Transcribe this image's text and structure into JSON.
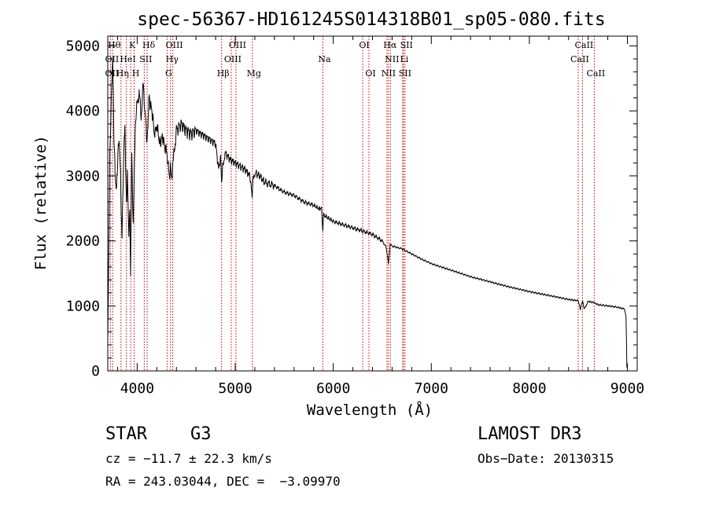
{
  "chart_data": {
    "type": "line",
    "title": "spec-56367-HD161245S014318B01_sp05-080.fits",
    "xlabel": "Wavelength (Å)",
    "ylabel": "Flux (relative)",
    "xlim": [
      3700,
      9100
    ],
    "ylim": [
      0,
      5150
    ],
    "xticks": [
      4000,
      5000,
      6000,
      7000,
      8000,
      9000
    ],
    "yticks": [
      0,
      1000,
      2000,
      3000,
      4000,
      5000
    ],
    "grid": false,
    "series": [
      {
        "name": "spectrum",
        "x": [
          3700,
          3710,
          3720,
          3735,
          3750,
          3760,
          3775,
          3790,
          3800,
          3815,
          3830,
          3845,
          3860,
          3875,
          3890,
          3900,
          3915,
          3925,
          3933,
          3945,
          3960,
          3968,
          3980,
          4000,
          4020,
          4040,
          4060,
          4080,
          4102,
          4120,
          4150,
          4180,
          4200,
          4230,
          4260,
          4290,
          4310,
          4325,
          4340,
          4355,
          4380,
          4400,
          4450,
          4500,
          4550,
          4600,
          4650,
          4700,
          4750,
          4800,
          4830,
          4850,
          4861,
          4875,
          4900,
          4950,
          5000,
          5050,
          5100,
          5150,
          5172,
          5183,
          5200,
          5250,
          5300,
          5400,
          5500,
          5600,
          5700,
          5800,
          5850,
          5880,
          5893,
          5900,
          5950,
          6000,
          6100,
          6200,
          6300,
          6400,
          6500,
          6540,
          6563,
          6580,
          6600,
          6700,
          6800,
          6900,
          7000,
          7200,
          7400,
          7600,
          7800,
          8000,
          8200,
          8400,
          8498,
          8520,
          8542,
          8560,
          8600,
          8662,
          8700,
          8800,
          8900,
          8950,
          8970,
          8985,
          8990,
          8995
        ],
        "values": [
          500,
          1700,
          3300,
          4100,
          4900,
          3800,
          3000,
          2800,
          3200,
          3600,
          3000,
          2000,
          3200,
          3800,
          2500,
          3000,
          2100,
          2500,
          1500,
          3300,
          2200,
          2800,
          3800,
          4100,
          4300,
          3900,
          4400,
          4000,
          3500,
          4200,
          4000,
          3600,
          3800,
          3500,
          3600,
          3400,
          3300,
          3000,
          3100,
          3000,
          3400,
          3700,
          3800,
          3700,
          3650,
          3700,
          3650,
          3600,
          3550,
          3500,
          3100,
          3300,
          2900,
          3200,
          3350,
          3250,
          3200,
          3150,
          3100,
          3000,
          2700,
          2950,
          3050,
          3000,
          2900,
          2850,
          2750,
          2700,
          2600,
          2550,
          2500,
          2500,
          2150,
          2400,
          2350,
          2300,
          2250,
          2200,
          2150,
          2100,
          2000,
          1900,
          1650,
          1950,
          1920,
          1880,
          1800,
          1720,
          1650,
          1550,
          1450,
          1370,
          1290,
          1220,
          1160,
          1100,
          1080,
          950,
          1080,
          950,
          1070,
          1050,
          1020,
          1000,
          980,
          960,
          950,
          850,
          500,
          50
        ]
      }
    ],
    "lines": [
      {
        "name": "OII",
        "x": 3727
      },
      {
        "name": "Hθ",
        "x": 3750
      },
      {
        "name": "Hη",
        "x": 3835
      },
      {
        "name": "HeI",
        "x": 3889
      },
      {
        "name": "K",
        "x": 3934
      },
      {
        "name": "SII",
        "x": 4072
      },
      {
        "name": "H",
        "x": 3969
      },
      {
        "name": "Hδ",
        "x": 4102
      },
      {
        "name": "Hγ",
        "x": 4340
      },
      {
        "name": "G",
        "x": 4305
      },
      {
        "name": "OIII",
        "x": 4363
      },
      {
        "name": "Hβ",
        "x": 4861
      },
      {
        "name": "OIII",
        "x": 4959
      },
      {
        "name": "OIII",
        "x": 5007
      },
      {
        "name": "Mg",
        "x": 5175
      },
      {
        "name": "Na",
        "x": 5894
      },
      {
        "name": "OI",
        "x": 6300
      },
      {
        "name": "OI",
        "x": 6364
      },
      {
        "name": "NII",
        "x": 6548
      },
      {
        "name": "Hα",
        "x": 6563
      },
      {
        "name": "NII",
        "x": 6583
      },
      {
        "name": "Li",
        "x": 6708
      },
      {
        "name": "SII",
        "x": 6716
      },
      {
        "name": "SII",
        "x": 6731
      },
      {
        "name": "CaII",
        "x": 8498
      },
      {
        "name": "CaII",
        "x": 8542
      },
      {
        "name": "CaII",
        "x": 8662
      }
    ],
    "line_labels": [
      {
        "text": "Hθ",
        "x": 3750,
        "row": 0
      },
      {
        "text": "K",
        "x": 3934,
        "row": 0
      },
      {
        "text": "Hδ",
        "x": 4102,
        "row": 0
      },
      {
        "text": "OIII",
        "x": 4363,
        "row": 0
      },
      {
        "text": "OIII",
        "x": 5007,
        "row": 0
      },
      {
        "text": "OI",
        "x": 6300,
        "row": 0
      },
      {
        "text": "Hα",
        "x": 6563,
        "row": 0
      },
      {
        "text": "SII",
        "x": 6731,
        "row": 0
      },
      {
        "text": "CaII",
        "x": 8542,
        "row": 0
      },
      {
        "text": "OII",
        "x": 3727,
        "row": 1
      },
      {
        "text": "HeI",
        "x": 3889,
        "row": 1
      },
      {
        "text": "SII",
        "x": 4072,
        "row": 1
      },
      {
        "text": "Hγ",
        "x": 4340,
        "row": 1
      },
      {
        "text": "OIII",
        "x": 4959,
        "row": 1
      },
      {
        "text": "Na",
        "x": 5894,
        "row": 1
      },
      {
        "text": "NII",
        "x": 6583,
        "row": 1
      },
      {
        "text": "Li",
        "x": 6708,
        "row": 1
      },
      {
        "text": "CaII",
        "x": 8498,
        "row": 1
      },
      {
        "text": "OII",
        "x": 3727,
        "row": 2
      },
      {
        "text": "Hη",
        "x": 3835,
        "row": 2
      },
      {
        "text": "H",
        "x": 3969,
        "row": 2
      },
      {
        "text": "G",
        "x": 4305,
        "row": 2
      },
      {
        "text": "Hβ",
        "x": 4861,
        "row": 2
      },
      {
        "text": "Mg",
        "x": 5175,
        "row": 2
      },
      {
        "text": "OI",
        "x": 6364,
        "row": 2
      },
      {
        "text": "NII",
        "x": 6548,
        "row": 2
      },
      {
        "text": "SII",
        "x": 6716,
        "row": 2
      },
      {
        "text": "CaII",
        "x": 8662,
        "row": 2
      }
    ]
  },
  "info": {
    "object_type": "STAR",
    "subclass": "G3",
    "survey": "LAMOST DR3",
    "redshift": "cz = −11.7 ± 22.3 km/s",
    "obs_date": "Obs−Date: 20130315",
    "coords": "RA = 243.03044, DEC =  −3.09970"
  }
}
